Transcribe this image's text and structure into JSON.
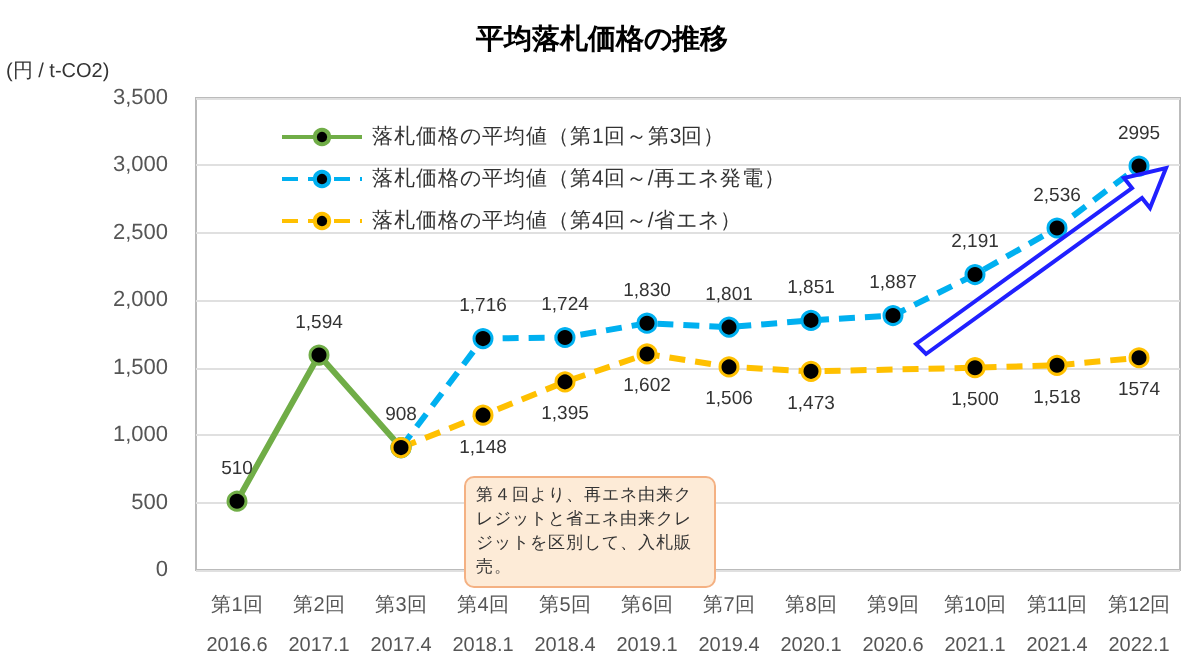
{
  "chart_data": {
    "type": "line",
    "title": "平均落札価格の推移",
    "ylabel": "(円 / t-CO2)",
    "categories": [
      "第1回\n2016.6",
      "第2回\n2017.1",
      "第3回\n2017.4",
      "第4回\n2018.1",
      "第5回\n2018.4",
      "第6回\n2019.1",
      "第7回\n2019.4",
      "第8回\n2020.1",
      "第9回\n2020.6",
      "第10回\n2021.1",
      "第11回\n2021.4",
      "第12回\n2022.1"
    ],
    "series": [
      {
        "name": "落札価格の平均値（第1回～第3回）",
        "color": "#70ad47",
        "line_style": "solid",
        "values": [
          510,
          1594,
          908,
          null,
          null,
          null,
          null,
          null,
          null,
          null,
          null,
          null
        ],
        "value_labels": [
          "510",
          "1,594",
          "908",
          null,
          null,
          null,
          null,
          null,
          null,
          null,
          null,
          null
        ]
      },
      {
        "name": "落札価格の平均値（第4回～/再エネ発電）",
        "color": "#00b0f0",
        "line_style": "dashed",
        "values": [
          null,
          null,
          908,
          1716,
          1724,
          1830,
          1801,
          1851,
          1887,
          2191,
          2536,
          2995
        ],
        "value_labels": [
          null,
          null,
          null,
          "1,716",
          "1,724",
          "1,830",
          "1,801",
          "1,851",
          "1,887",
          "2,191",
          "2,536",
          "2995"
        ]
      },
      {
        "name": "落札価格の平均値（第4回～/省エネ）",
        "color": "#ffc000",
        "line_style": "dashed",
        "values": [
          null,
          null,
          908,
          1148,
          1395,
          1602,
          1506,
          1473,
          null,
          1500,
          1518,
          1574
        ],
        "value_labels": [
          null,
          null,
          null,
          "1,148",
          "1,395",
          "1,602",
          "1,506",
          "1,473",
          null,
          "1,500",
          "1,518",
          "1574"
        ]
      }
    ],
    "ylim": [
      0,
      3500
    ],
    "yticks": [
      0,
      500,
      {
        "value": 1000,
        "label": "1,000"
      },
      {
        "value": 1500,
        "label": "1,500"
      },
      {
        "value": 2000,
        "label": "2,000"
      },
      {
        "value": 2500,
        "label": "2,500"
      },
      {
        "value": 3000,
        "label": "3,000"
      },
      {
        "value": 3500,
        "label": "3,500"
      }
    ],
    "grid": "y",
    "legend": "top left",
    "marker": "circle",
    "annotations": [
      "第４回より、再エネ由来クレジットと省エネ由来クレジットを区別して、入札販売。"
    ]
  }
}
